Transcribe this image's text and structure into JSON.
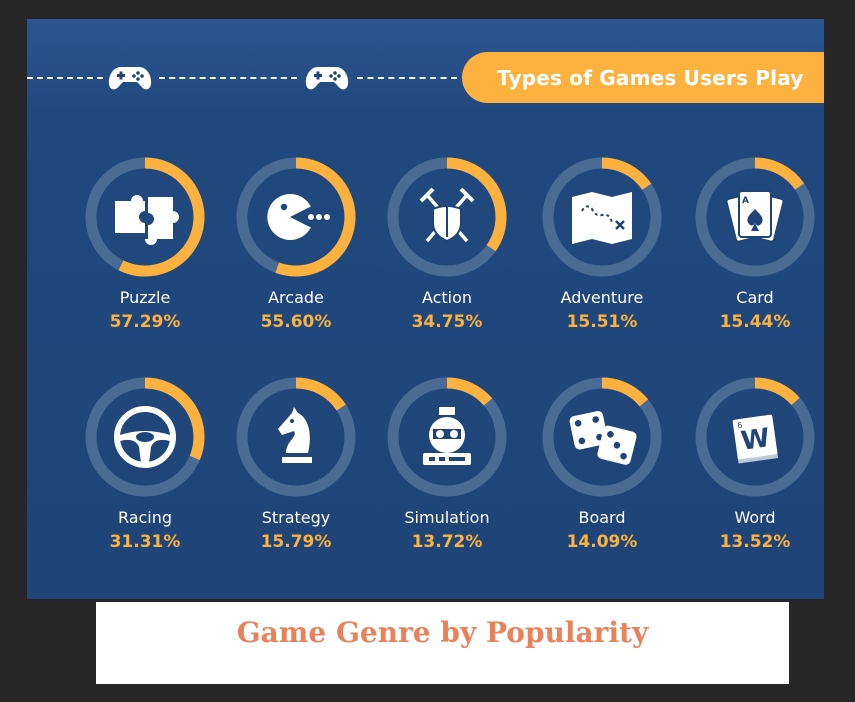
{
  "header": {
    "title": "Types of Games Users Play"
  },
  "caption": "Game Genre by Popularity",
  "colors": {
    "background": "#1f4477",
    "ring_track": "#4a6b93",
    "accent": "#fdb240",
    "text": "#ffffff",
    "caption": "#e9825a"
  },
  "decorations": {
    "header_icons": [
      "gamepad-icon",
      "gamepad-icon"
    ]
  },
  "chart_data": {
    "type": "pie",
    "title": "Types of Games Users Play",
    "unit": "%",
    "categories": [
      "Puzzle",
      "Arcade",
      "Action",
      "Adventure",
      "Card",
      "Racing",
      "Strategy",
      "Simulation",
      "Board",
      "Word"
    ],
    "values": [
      57.29,
      55.6,
      34.75,
      15.51,
      15.44,
      31.31,
      15.79,
      13.72,
      14.09,
      13.52
    ],
    "value_labels": [
      "57.29%",
      "55.60%",
      "34.75%",
      "15.51%",
      "15.44%",
      "31.31%",
      "15.79%",
      "13.72%",
      "14.09%",
      "13.52%"
    ],
    "icons": [
      "puzzle-icon",
      "pacman-icon",
      "crossed-swords-shield-icon",
      "treasure-map-icon",
      "playing-cards-icon",
      "steering-wheel-icon",
      "chess-knight-icon",
      "racing-simulator-icon",
      "dice-icon",
      "letter-tile-icon"
    ],
    "layout": "grid 2 rows x 5 columns of ring gauges",
    "legend": "none"
  }
}
